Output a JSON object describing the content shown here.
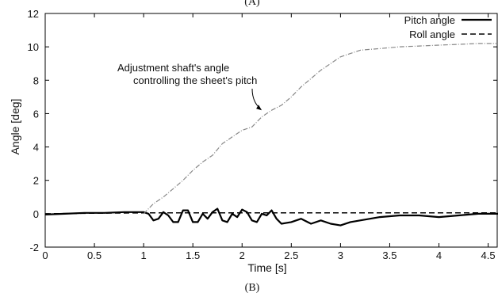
{
  "chart_data": {
    "type": "line",
    "title": "",
    "caption_top": "(A)",
    "caption_bottom": "(B)",
    "xlabel": "Time [s]",
    "ylabel": "Angle [deg]",
    "xlim": [
      0,
      4.6
    ],
    "ylim": [
      -2,
      12
    ],
    "x_ticks": [
      "0",
      "0.5",
      "1",
      "1.5",
      "2",
      "2.5",
      "3",
      "3.5",
      "4",
      "4.5"
    ],
    "x_tick_values": [
      0,
      0.5,
      1,
      1.5,
      2,
      2.5,
      3,
      3.5,
      4,
      4.5
    ],
    "y_ticks": [
      "-2",
      "0",
      "2",
      "4",
      "6",
      "8",
      "10",
      "12"
    ],
    "y_tick_values": [
      -2,
      0,
      2,
      4,
      6,
      8,
      10,
      12
    ],
    "grid": false,
    "legend_position": "top-right",
    "annotation": {
      "line1": "Adjustment shaft's angle",
      "line2": "controlling the sheet's pitch",
      "target_x": 2.2,
      "target_y": 6.2
    },
    "series": [
      {
        "name": "Pitch angle",
        "style": "solid",
        "color": "#000000",
        "x": [
          0,
          0.2,
          0.4,
          0.6,
          0.8,
          1.0,
          1.05,
          1.1,
          1.15,
          1.2,
          1.25,
          1.3,
          1.35,
          1.4,
          1.45,
          1.5,
          1.55,
          1.6,
          1.65,
          1.7,
          1.75,
          1.8,
          1.85,
          1.9,
          1.95,
          2.0,
          2.05,
          2.1,
          2.15,
          2.2,
          2.25,
          2.3,
          2.35,
          2.4,
          2.5,
          2.6,
          2.7,
          2.8,
          2.9,
          3.0,
          3.1,
          3.2,
          3.4,
          3.6,
          3.8,
          4.0,
          4.2,
          4.4,
          4.6
        ],
        "y": [
          -0.05,
          0.0,
          0.05,
          0.05,
          0.1,
          0.1,
          0.0,
          -0.4,
          -0.3,
          0.1,
          -0.1,
          -0.5,
          -0.5,
          0.2,
          0.2,
          -0.5,
          -0.5,
          0.0,
          -0.3,
          0.1,
          0.3,
          -0.4,
          -0.5,
          0.0,
          -0.2,
          0.25,
          0.1,
          -0.4,
          -0.5,
          0.0,
          -0.1,
          0.2,
          -0.3,
          -0.6,
          -0.5,
          -0.3,
          -0.6,
          -0.4,
          -0.6,
          -0.7,
          -0.5,
          -0.4,
          -0.2,
          -0.1,
          -0.1,
          -0.2,
          -0.1,
          0.0,
          0.0
        ]
      },
      {
        "name": "Roll angle",
        "style": "dashed",
        "color": "#000000",
        "x": [
          0,
          0.5,
          1.0,
          1.5,
          2.0,
          2.5,
          3.0,
          3.5,
          4.0,
          4.5,
          4.6
        ],
        "y": [
          0.0,
          0.03,
          0.05,
          0.05,
          0.05,
          0.05,
          0.05,
          0.05,
          0.05,
          0.05,
          0.05
        ]
      },
      {
        "name": "Adjustment shaft's angle",
        "style": "dash-dot",
        "color": "#888888",
        "x": [
          1.0,
          1.1,
          1.2,
          1.3,
          1.4,
          1.5,
          1.6,
          1.7,
          1.8,
          1.9,
          2.0,
          2.1,
          2.2,
          2.3,
          2.4,
          2.5,
          2.6,
          2.7,
          2.8,
          2.9,
          3.0,
          3.1,
          3.2,
          3.4,
          3.6,
          3.8,
          4.0,
          4.2,
          4.4,
          4.6
        ],
        "y": [
          0.0,
          0.6,
          1.0,
          1.5,
          2.0,
          2.6,
          3.1,
          3.5,
          4.2,
          4.6,
          5.0,
          5.2,
          5.8,
          6.2,
          6.5,
          7.0,
          7.6,
          8.1,
          8.6,
          9.0,
          9.4,
          9.6,
          9.8,
          9.9,
          10.0,
          10.05,
          10.1,
          10.15,
          10.2,
          10.2
        ]
      }
    ]
  }
}
